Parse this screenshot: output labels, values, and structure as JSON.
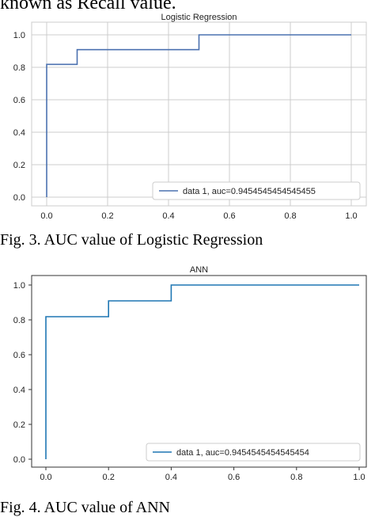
{
  "page": {
    "top_text": "known as Recall value.",
    "caption_fig3": "Fig. 3.   AUC value of Logistic Regression",
    "caption_fig4": "Fig. 4.   AUC value of ANN"
  },
  "chart_data": [
    {
      "type": "line",
      "title": "Logistic Regression",
      "xlabel": "",
      "ylabel": "",
      "xlim": [
        0,
        1
      ],
      "ylim": [
        0,
        1
      ],
      "xticks": [
        "0.0",
        "0.2",
        "0.4",
        "0.6",
        "0.8",
        "1.0"
      ],
      "yticks": [
        "0.0",
        "0.2",
        "0.4",
        "0.6",
        "0.8",
        "1.0"
      ],
      "grid": true,
      "legend_position": "lower-right",
      "series": [
        {
          "name": "data 1, auc=0.9454545454545455",
          "color": "#4c72b0",
          "x": [
            0.0,
            0.0,
            0.1,
            0.1,
            0.5,
            0.5,
            1.0
          ],
          "y": [
            0.0,
            0.818,
            0.818,
            0.909,
            0.909,
            1.0,
            1.0
          ]
        }
      ]
    },
    {
      "type": "line",
      "title": "ANN",
      "xlabel": "",
      "ylabel": "",
      "xlim": [
        0,
        1
      ],
      "ylim": [
        0,
        1
      ],
      "xticks": [
        "0.0",
        "0.2",
        "0.4",
        "0.6",
        "0.8",
        "1.0"
      ],
      "yticks": [
        "0.0",
        "0.2",
        "0.4",
        "0.6",
        "0.8",
        "1.0"
      ],
      "grid": false,
      "legend_position": "lower-right",
      "series": [
        {
          "name": "data 1, auc=0.9454545454545454",
          "color": "#1f77b4",
          "x": [
            0.0,
            0.0,
            0.2,
            0.2,
            0.4,
            0.4,
            1.0
          ],
          "y": [
            0.0,
            0.818,
            0.818,
            0.909,
            0.909,
            1.0,
            1.0
          ]
        }
      ]
    }
  ]
}
